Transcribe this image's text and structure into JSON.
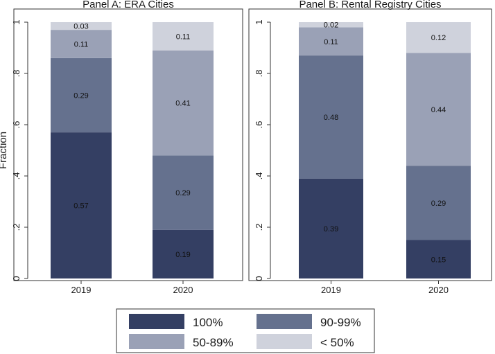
{
  "chart_data": [
    {
      "type": "bar",
      "stacked": true,
      "title": "Panel A: ERA Cities",
      "ylabel": "Fraction",
      "ylim": [
        0,
        1
      ],
      "yticks": [
        0,
        0.2,
        0.4,
        0.6,
        0.8,
        1
      ],
      "ytick_labels": [
        "0",
        ".2",
        ".4",
        ".6",
        ".8",
        "1"
      ],
      "categories": [
        "2019",
        "2020"
      ],
      "series": [
        {
          "name": "100%",
          "values": [
            0.57,
            0.19
          ],
          "labels": [
            "0.57",
            "0.19"
          ]
        },
        {
          "name": "90-99%",
          "values": [
            0.29,
            0.29
          ],
          "labels": [
            "0.29",
            "0.29"
          ]
        },
        {
          "name": "50-89%",
          "values": [
            0.11,
            0.41
          ],
          "labels": [
            "0.11",
            "0.41"
          ]
        },
        {
          "name": "< 50%",
          "values": [
            0.03,
            0.11
          ],
          "labels": [
            "0.03",
            "0.11"
          ]
        }
      ]
    },
    {
      "type": "bar",
      "stacked": true,
      "title": "Panel B: Rental Registry Cities",
      "ylabel": "",
      "ylim": [
        0,
        1
      ],
      "yticks": [
        0,
        0.2,
        0.4,
        0.6,
        0.8,
        1
      ],
      "ytick_labels": [
        "0",
        ".2",
        ".4",
        ".6",
        ".8",
        "1"
      ],
      "categories": [
        "2019",
        "2020"
      ],
      "series": [
        {
          "name": "100%",
          "values": [
            0.39,
            0.15
          ],
          "labels": [
            "0.39",
            "0.15"
          ]
        },
        {
          "name": "90-99%",
          "values": [
            0.48,
            0.29
          ],
          "labels": [
            "0.48",
            "0.29"
          ]
        },
        {
          "name": "50-89%",
          "values": [
            0.11,
            0.44
          ],
          "labels": [
            "0.11",
            "0.44"
          ]
        },
        {
          "name": "< 50%",
          "values": [
            0.02,
            0.12
          ],
          "labels": [
            "0.02",
            "0.12"
          ]
        }
      ]
    }
  ],
  "legend": {
    "placement": "bottom-center",
    "items": [
      {
        "label": "100%",
        "color": "#343f63"
      },
      {
        "label": "90-99%",
        "color": "#65718e"
      },
      {
        "label": "50-89%",
        "color": "#9aa1b6"
      },
      {
        "label": "< 50%",
        "color": "#cfd2dc"
      }
    ]
  },
  "colors": {
    "series": [
      "#343f63",
      "#65718e",
      "#9aa1b6",
      "#cfd2dc"
    ],
    "label_text": "#111111",
    "axis": "#333333",
    "frame": "#333333"
  }
}
